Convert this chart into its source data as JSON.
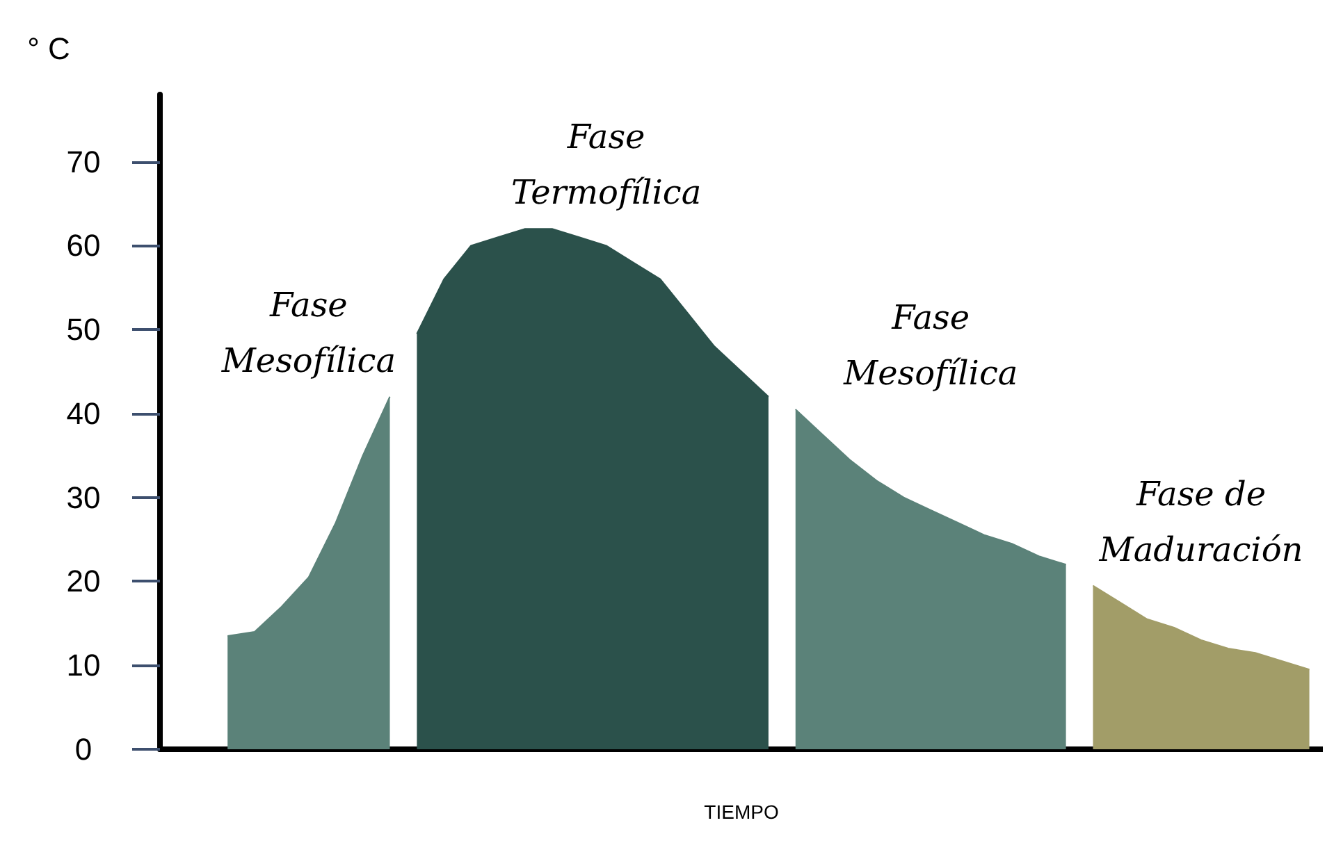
{
  "chart_data": {
    "type": "area",
    "ylabel": "° C",
    "xlabel": "TIEMPO",
    "categories": [
      null,
      null,
      null,
      null,
      null,
      null,
      null,
      null,
      null,
      null,
      null,
      null,
      null,
      null,
      null,
      null,
      null,
      null,
      null,
      null,
      null,
      null,
      null,
      null,
      null,
      null,
      null,
      null,
      null,
      null,
      null,
      null,
      null,
      null,
      null,
      null,
      null,
      null,
      null,
      null,
      null,
      null,
      null
    ],
    "series": [
      {
        "name": "Fase Mesofílica",
        "color": "#5b8279",
        "values": [
          null,
          null,
          13.5,
          14,
          17,
          20.5,
          27,
          35,
          42,
          null,
          null,
          null,
          null,
          null,
          null,
          null,
          null,
          null,
          null,
          null,
          null,
          null,
          null,
          null,
          null,
          null,
          null,
          null,
          null,
          null,
          null,
          null,
          null,
          null,
          null,
          null,
          null,
          null,
          null,
          null,
          null,
          null,
          null
        ]
      },
      {
        "name": "Fase Termofílica",
        "color": "#2b514b",
        "values": [
          null,
          null,
          null,
          null,
          null,
          null,
          null,
          null,
          null,
          49.5,
          56,
          60,
          61,
          62,
          62,
          61,
          60,
          58,
          56,
          52,
          48,
          45,
          42,
          null,
          null,
          null,
          null,
          null,
          null,
          null,
          null,
          null,
          null,
          null,
          null,
          null,
          null,
          null,
          null,
          null,
          null,
          null,
          null
        ]
      },
      {
        "name": "Fase Mesofílica",
        "color": "#5b8279",
        "values": [
          null,
          null,
          null,
          null,
          null,
          null,
          null,
          null,
          null,
          null,
          null,
          null,
          null,
          null,
          null,
          null,
          null,
          null,
          null,
          null,
          null,
          null,
          null,
          40.5,
          37.5,
          34.5,
          32,
          30,
          28.5,
          27,
          25.5,
          24.5,
          23,
          22,
          null,
          null,
          null,
          null,
          null,
          null,
          null,
          null,
          null
        ]
      },
      {
        "name": "Fase de Maduración",
        "color": "#a29d68",
        "values": [
          null,
          null,
          null,
          null,
          null,
          null,
          null,
          null,
          null,
          null,
          null,
          null,
          null,
          null,
          null,
          null,
          null,
          null,
          null,
          null,
          null,
          null,
          null,
          null,
          null,
          null,
          null,
          null,
          null,
          null,
          null,
          null,
          null,
          null,
          19.5,
          17.5,
          15.5,
          14.5,
          13,
          12,
          11.5,
          10.5,
          9.5
        ]
      }
    ],
    "ylim": [
      0,
      78
    ],
    "yticks": [
      0,
      10,
      20,
      30,
      40,
      50,
      60,
      70
    ],
    "tick_labels": "y",
    "grid": false,
    "legend": false
  }
}
